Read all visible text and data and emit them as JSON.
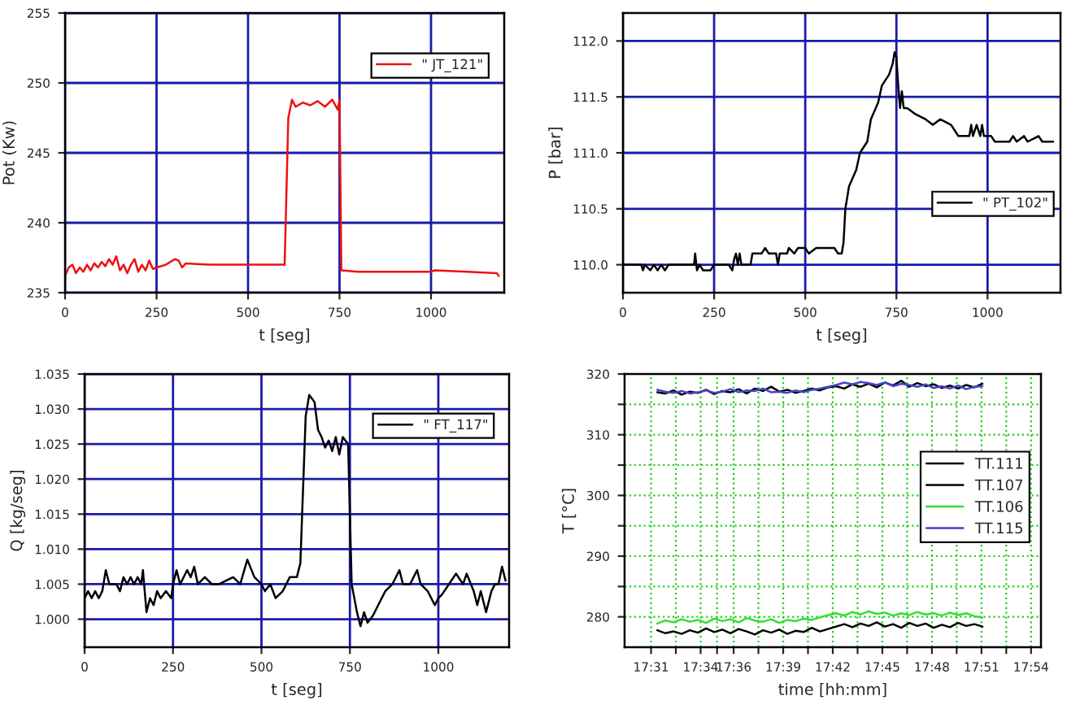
{
  "chart_data": [
    {
      "type": "line",
      "xlabel": "t [seg]",
      "ylabel": "Pot (Kw)",
      "xlim": [
        0,
        1200
      ],
      "ylim": [
        235,
        255
      ],
      "xticks": [
        0,
        250,
        500,
        750,
        1000
      ],
      "yticks": [
        235,
        240,
        245,
        250,
        255
      ],
      "grid": true,
      "legend": "top right",
      "x": [
        0,
        10,
        20,
        30,
        40,
        50,
        60,
        70,
        80,
        90,
        100,
        110,
        120,
        130,
        140,
        150,
        160,
        170,
        180,
        190,
        200,
        210,
        220,
        230,
        240,
        250,
        275,
        300,
        310,
        320,
        330,
        400,
        500,
        600,
        610,
        620,
        630,
        650,
        670,
        690,
        710,
        730,
        745,
        750,
        755,
        800,
        900,
        1000,
        1010,
        1100,
        1180,
        1185
      ],
      "series": [
        {
          "name": "\" JT_121\"",
          "color": "#ee1111",
          "values": [
            236.2,
            236.8,
            237.0,
            236.4,
            236.8,
            236.5,
            237.0,
            236.6,
            237.1,
            236.8,
            237.2,
            236.9,
            237.4,
            237.0,
            237.6,
            236.6,
            237.0,
            236.4,
            237.0,
            237.4,
            236.5,
            237.0,
            236.6,
            237.3,
            236.7,
            236.8,
            237.0,
            237.4,
            237.3,
            236.8,
            237.1,
            237.0,
            237.0,
            237.0,
            247.5,
            248.8,
            248.3,
            248.6,
            248.4,
            248.7,
            248.3,
            248.8,
            248.1,
            248.8,
            236.6,
            236.5,
            236.5,
            236.5,
            236.6,
            236.5,
            236.4,
            236.2
          ]
        }
      ]
    },
    {
      "type": "line",
      "xlabel": "t [seg]",
      "ylabel": "P [bar]",
      "xlim": [
        0,
        1200
      ],
      "ylim": [
        109.75,
        112.25
      ],
      "xticks": [
        0,
        250,
        500,
        750,
        1000
      ],
      "yticks": [
        {
          "value": 110,
          "label": "110.0"
        },
        110.5,
        {
          "value": 111,
          "label": "111.0"
        },
        111.5,
        {
          "value": 112,
          "label": "112.0"
        }
      ],
      "grid": true,
      "legend": "lower right",
      "x": [
        0,
        50,
        55,
        60,
        75,
        85,
        95,
        105,
        115,
        125,
        195,
        198,
        203,
        210,
        220,
        240,
        250,
        290,
        300,
        305,
        310,
        315,
        320,
        325,
        350,
        355,
        380,
        390,
        400,
        420,
        425,
        430,
        450,
        455,
        470,
        480,
        500,
        510,
        530,
        550,
        580,
        590,
        600,
        605,
        610,
        620,
        640,
        650,
        670,
        680,
        700,
        710,
        730,
        740,
        745,
        750,
        755,
        760,
        765,
        770,
        780,
        800,
        830,
        850,
        870,
        900,
        910,
        920,
        950,
        955,
        960,
        970,
        980,
        985,
        990,
        1010,
        1020,
        1060,
        1070,
        1080,
        1100,
        1110,
        1140,
        1150,
        1180
      ],
      "series": [
        {
          "name": "\" PT_102\"",
          "color": "#000000",
          "values": [
            110.0,
            110.0,
            109.95,
            110.0,
            109.95,
            110.0,
            109.95,
            110.0,
            109.95,
            110.0,
            110.0,
            110.1,
            109.95,
            110.0,
            109.95,
            109.95,
            110.0,
            110.0,
            109.95,
            110.05,
            110.1,
            110.0,
            110.1,
            110.0,
            110.0,
            110.1,
            110.1,
            110.15,
            110.1,
            110.1,
            110.0,
            110.1,
            110.1,
            110.15,
            110.1,
            110.15,
            110.15,
            110.1,
            110.15,
            110.15,
            110.15,
            110.1,
            110.1,
            110.2,
            110.5,
            110.7,
            110.85,
            111.0,
            111.1,
            111.3,
            111.45,
            111.6,
            111.7,
            111.8,
            111.9,
            111.85,
            111.6,
            111.4,
            111.55,
            111.4,
            111.4,
            111.35,
            111.3,
            111.25,
            111.3,
            111.25,
            111.2,
            111.15,
            111.15,
            111.25,
            111.15,
            111.25,
            111.15,
            111.25,
            111.15,
            111.15,
            111.1,
            111.1,
            111.15,
            111.1,
            111.15,
            111.1,
            111.15,
            111.1,
            111.1
          ]
        }
      ]
    },
    {
      "type": "line",
      "xlabel": "t [seg]",
      "ylabel": "Q [kg/seg]",
      "xlim": [
        0,
        1200
      ],
      "ylim": [
        0.996,
        1.035
      ],
      "xticks": [
        0,
        250,
        500,
        750,
        1000
      ],
      "yticks": [
        {
          "value": 1.0,
          "label": "1.000"
        },
        {
          "value": 1.005,
          "label": "1.005"
        },
        {
          "value": 1.01,
          "label": "1.010"
        },
        {
          "value": 1.015,
          "label": "1.015"
        },
        {
          "value": 1.02,
          "label": "1.020"
        },
        {
          "value": 1.025,
          "label": "1.025"
        },
        {
          "value": 1.03,
          "label": "1.030"
        },
        {
          "value": 1.035,
          "label": "1.035"
        }
      ],
      "grid": true,
      "legend": "top right",
      "x": [
        0,
        10,
        20,
        30,
        40,
        50,
        60,
        70,
        90,
        100,
        110,
        120,
        130,
        140,
        150,
        160,
        165,
        175,
        185,
        195,
        205,
        215,
        230,
        245,
        250,
        260,
        270,
        290,
        300,
        310,
        320,
        340,
        360,
        380,
        400,
        420,
        440,
        460,
        480,
        500,
        510,
        525,
        540,
        560,
        580,
        600,
        610,
        625,
        635,
        650,
        660,
        670,
        680,
        690,
        700,
        710,
        720,
        730,
        745,
        755,
        770,
        780,
        790,
        800,
        815,
        830,
        850,
        870,
        890,
        900,
        920,
        940,
        950,
        970,
        990,
        1000,
        1010,
        1030,
        1050,
        1070,
        1080,
        1100,
        1110,
        1120,
        1135,
        1150,
        1160,
        1170,
        1180,
        1190
      ],
      "series": [
        {
          "name": "\" FT_117\"",
          "color": "#000000",
          "values": [
            1.003,
            1.004,
            1.003,
            1.004,
            1.003,
            1.004,
            1.007,
            1.005,
            1.005,
            1.004,
            1.006,
            1.005,
            1.006,
            1.005,
            1.006,
            1.005,
            1.007,
            1.001,
            1.003,
            1.002,
            1.004,
            1.003,
            1.004,
            1.003,
            1.005,
            1.007,
            1.005,
            1.007,
            1.006,
            1.0075,
            1.005,
            1.006,
            1.005,
            1.005,
            1.0055,
            1.006,
            1.005,
            1.0085,
            1.006,
            1.005,
            1.004,
            1.005,
            1.003,
            1.004,
            1.006,
            1.006,
            1.008,
            1.029,
            1.032,
            1.031,
            1.027,
            1.026,
            1.0245,
            1.0255,
            1.024,
            1.026,
            1.0235,
            1.026,
            1.025,
            1.005,
            1.001,
            0.999,
            1.001,
            0.9995,
            1.0005,
            1.002,
            1.004,
            1.005,
            1.007,
            1.005,
            1.005,
            1.007,
            1.005,
            1.004,
            1.002,
            1.003,
            1.0035,
            1.005,
            1.0065,
            1.005,
            1.0065,
            1.004,
            1.002,
            1.004,
            1.001,
            1.004,
            1.005,
            1.005,
            1.0075,
            1.0055
          ]
        }
      ]
    },
    {
      "type": "line",
      "xlabel": "time [hh:mm]",
      "ylabel": "T [°C]",
      "xlim": [
        17.49,
        17.91
      ],
      "ylim": [
        275,
        320
      ],
      "xticks": [
        {
          "value": 17.5167,
          "label": "17:31"
        },
        {
          "value": 17.5417,
          "label": null
        },
        {
          "value": 17.5667,
          "label": "17:34"
        },
        {
          "value": 17.5833,
          "label": null
        },
        {
          "value": 17.6,
          "label": "17:36"
        },
        {
          "value": 17.625,
          "label": null
        },
        {
          "value": 17.65,
          "label": "17:39"
        },
        {
          "value": 17.675,
          "label": null
        },
        {
          "value": 17.7,
          "label": "17:42"
        },
        {
          "value": 17.725,
          "label": null
        },
        {
          "value": 17.75,
          "label": "17:45"
        },
        {
          "value": 17.775,
          "label": null
        },
        {
          "value": 17.8,
          "label": "17:48"
        },
        {
          "value": 17.825,
          "label": null
        },
        {
          "value": 17.85,
          "label": "17:51"
        },
        {
          "value": 17.875,
          "label": null
        },
        {
          "value": 17.9,
          "label": "17:54"
        }
      ],
      "yticks": [
        280,
        {
          "value": 285,
          "label": null
        },
        290,
        {
          "value": 295,
          "label": null
        },
        300,
        {
          "value": 305,
          "label": null
        },
        310,
        {
          "value": 315,
          "label": null
        },
        320
      ],
      "grid": true,
      "legend": "right",
      "x": [
        17.523,
        17.5312,
        17.5394,
        17.5476,
        17.5558,
        17.564,
        17.5722,
        17.5804,
        17.5886,
        17.5968,
        17.605,
        17.6132,
        17.6214,
        17.6296,
        17.6378,
        17.646,
        17.6542,
        17.6624,
        17.6706,
        17.6788,
        17.687,
        17.6952,
        17.7034,
        17.7116,
        17.7198,
        17.728,
        17.7362,
        17.7444,
        17.7526,
        17.7608,
        17.769,
        17.7772,
        17.7854,
        17.7936,
        17.8018,
        17.81,
        17.8182,
        17.8264,
        17.8346,
        17.8428,
        17.851
      ],
      "series": [
        {
          "name": "TT.111",
          "color": "#000000",
          "values": [
            317.0,
            316.8,
            317.3,
            316.6,
            317.1,
            316.9,
            317.4,
            316.7,
            317.2,
            317.0,
            317.5,
            316.8,
            317.6,
            317.2,
            317.9,
            317.1,
            317.4,
            316.9,
            317.2,
            317.6,
            317.3,
            317.8,
            318.0,
            317.6,
            318.3,
            317.9,
            318.4,
            317.8,
            318.6,
            318.1,
            318.9,
            317.9,
            318.5,
            318.0,
            318.3,
            317.7,
            318.1,
            317.6,
            318.2,
            317.8,
            318.4
          ]
        },
        {
          "name": "TT.107",
          "color": "#000000",
          "values": [
            277.8,
            277.3,
            277.6,
            277.2,
            277.8,
            277.4,
            278.1,
            277.5,
            277.9,
            277.3,
            278.0,
            277.6,
            277.1,
            277.8,
            277.4,
            277.9,
            277.2,
            277.7,
            277.5,
            278.2,
            277.6,
            278.0,
            278.4,
            278.8,
            278.3,
            278.9,
            278.5,
            279.1,
            278.4,
            278.8,
            278.2,
            279.0,
            278.5,
            278.9,
            278.2,
            278.7,
            278.3,
            279.0,
            278.5,
            278.8,
            278.4
          ]
        },
        {
          "name": "TT.106",
          "color": "#33dd33",
          "values": [
            278.9,
            279.4,
            279.1,
            279.6,
            279.2,
            279.5,
            279.0,
            279.7,
            279.3,
            279.6,
            279.1,
            279.8,
            279.4,
            279.2,
            279.6,
            279.0,
            279.5,
            279.3,
            279.7,
            279.5,
            279.9,
            280.3,
            280.6,
            280.2,
            280.8,
            280.4,
            280.9,
            280.5,
            280.7,
            280.2,
            280.6,
            280.3,
            280.8,
            280.4,
            280.6,
            280.2,
            280.7,
            280.3,
            280.6,
            280.1,
            279.9
          ]
        },
        {
          "name": "TT.115",
          "color": "#4444cc",
          "values": [
            317.4,
            317.1,
            316.9,
            317.2,
            316.8,
            317.0,
            317.3,
            316.9,
            317.1,
            317.5,
            317.0,
            317.3,
            317.2,
            317.6,
            317.0,
            317.1,
            316.9,
            317.3,
            317.0,
            317.4,
            317.6,
            317.9,
            318.2,
            318.6,
            318.3,
            318.7,
            318.5,
            318.2,
            318.6,
            318.0,
            318.4,
            318.2,
            317.9,
            318.3,
            317.7,
            318.0,
            317.6,
            318.1,
            317.5,
            317.9,
            318.0
          ]
        }
      ]
    }
  ]
}
